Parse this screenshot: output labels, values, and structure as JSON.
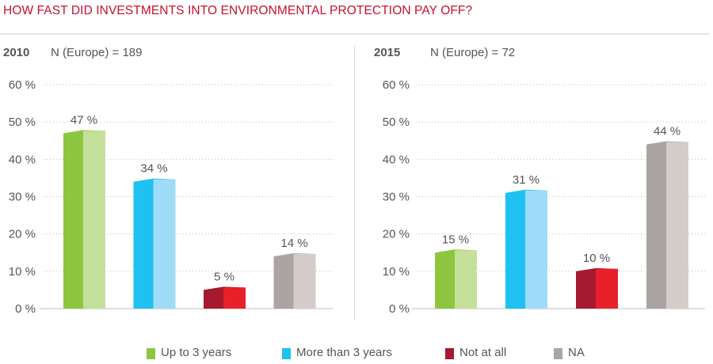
{
  "title": "HOW FAST DID INVESTMENTS INTO ENVIRONMENTAL PROTECTION PAY OFF?",
  "colors": {
    "title": "#c8102e",
    "up_to_3": [
      "#8cc63f",
      "#c5e09a"
    ],
    "more_than_3": [
      "#1ec1f0",
      "#9edcf7"
    ],
    "not_at_all": [
      "#a6192e",
      "#e8202a"
    ],
    "na": [
      "#aca4a2",
      "#d4ccc9"
    ]
  },
  "legend": [
    {
      "label": "Up to 3 years",
      "color_key": "up_to_3"
    },
    {
      "label": "More than 3 years",
      "color_key": "more_than_3"
    },
    {
      "label": "Not at all",
      "color_key": "not_at_all"
    },
    {
      "label": "NA",
      "color_key": "na"
    }
  ],
  "chart_data": [
    {
      "type": "bar",
      "year": "2010",
      "n_label": "N (Europe) = 189",
      "categories": [
        "Up to 3 years",
        "More than 3 years",
        "Not at all",
        "NA"
      ],
      "values": [
        47,
        34,
        5,
        14
      ],
      "value_labels": [
        "47 %",
        "34 %",
        "5 %",
        "14 %"
      ],
      "yticks": [
        "0 %",
        "10 %",
        "20 %",
        "30 %",
        "40 %",
        "50 %",
        "60 %"
      ],
      "ylim": [
        0,
        60
      ],
      "grid": true
    },
    {
      "type": "bar",
      "year": "2015",
      "n_label": "N (Europe) = 72",
      "categories": [
        "Up to 3 years",
        "More than 3 years",
        "Not at all",
        "NA"
      ],
      "values": [
        15,
        31,
        10,
        44
      ],
      "value_labels": [
        "15 %",
        "31 %",
        "10 %",
        "44 %"
      ],
      "yticks": [
        "0 %",
        "10 %",
        "20 %",
        "30 %",
        "40 %",
        "50 %",
        "60 %"
      ],
      "ylim": [
        0,
        60
      ],
      "grid": true
    }
  ]
}
